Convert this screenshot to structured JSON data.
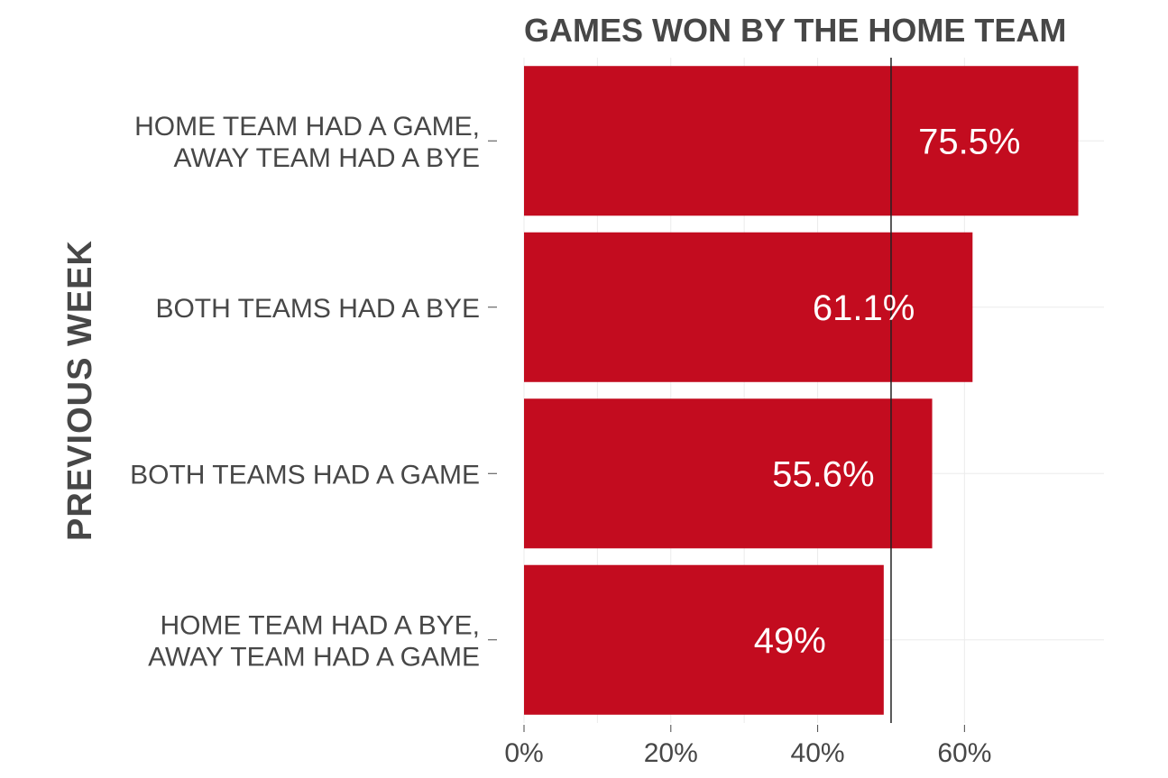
{
  "chart_data": {
    "type": "bar",
    "orientation": "horizontal",
    "title": "GAMES WON BY THE HOME TEAM",
    "ylabel": "PREVIOUS WEEK",
    "xlabel": "",
    "categories": [
      [
        "HOME TEAM HAD A GAME,",
        "AWAY TEAM HAD A BYE"
      ],
      [
        "BOTH TEAMS HAD A BYE"
      ],
      [
        "BOTH TEAMS HAD A GAME"
      ],
      [
        "HOME TEAM HAD A BYE,",
        "AWAY TEAM HAD A GAME"
      ]
    ],
    "values": [
      75.5,
      61.1,
      55.6,
      49
    ],
    "data_labels": [
      "75.5%",
      "61.1%",
      "55.6%",
      "49%"
    ],
    "xlim": [
      0,
      79
    ],
    "x_ticks": [
      0,
      20,
      40,
      60
    ],
    "x_tick_labels": [
      "0%",
      "20%",
      "40%",
      "60%"
    ],
    "reference_line": 50,
    "bar_color": "#c30c1f",
    "grid": true
  }
}
